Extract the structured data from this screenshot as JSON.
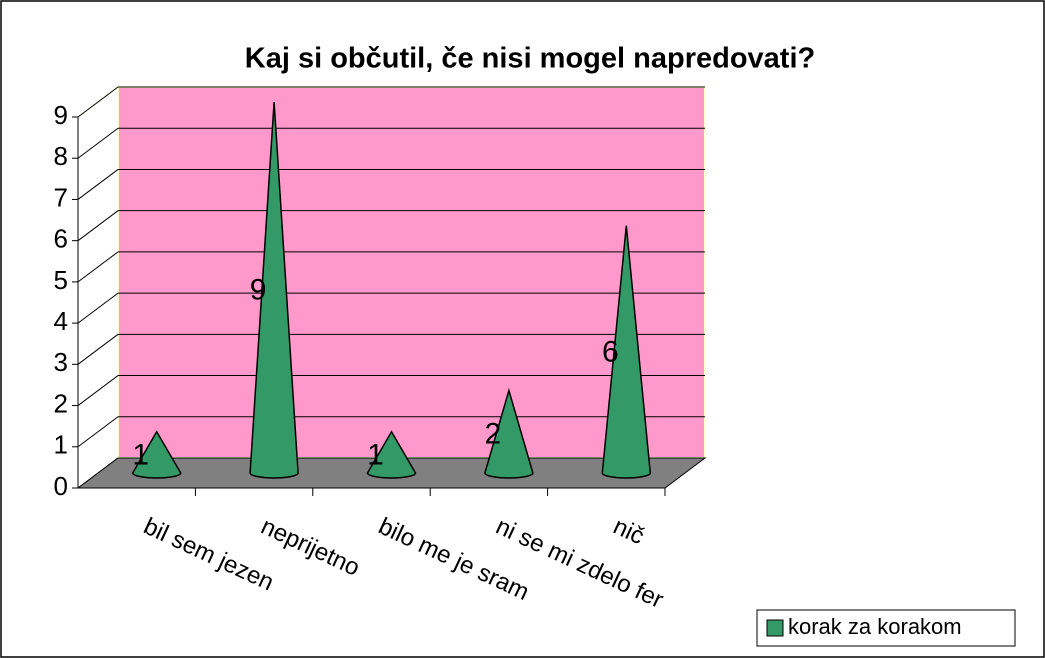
{
  "chart_data": {
    "type": "cone",
    "title": "Kaj si občutil, če nisi mogel napredovati?",
    "categories": [
      "bil sem jezen",
      "neprijetno",
      "bilo me je sram",
      "ni se mi zdelo fer",
      "nič"
    ],
    "series": [
      {
        "name": "korak za korakom",
        "color": "#339966",
        "values": [
          1,
          9,
          1,
          2,
          6
        ]
      }
    ],
    "ylim": [
      0,
      9
    ],
    "yticks": [
      0,
      1,
      2,
      3,
      4,
      5,
      6,
      7,
      8,
      9
    ],
    "grid": true,
    "wall_color": "#ff99cc",
    "floor_color": "#808080",
    "legend": "bottom-right"
  }
}
